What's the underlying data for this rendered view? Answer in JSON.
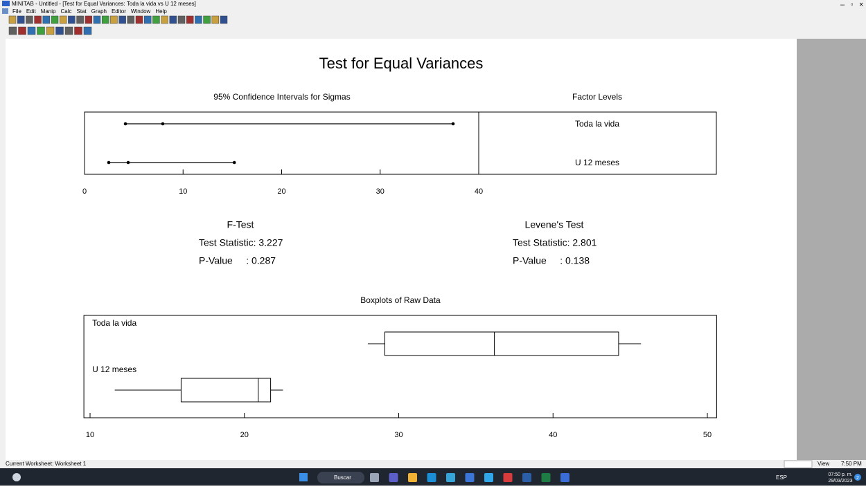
{
  "window": {
    "title": "MINITAB - Untitled - [Test for Equal Variances: Toda la vida vs U 12 meses]",
    "menu": [
      "File",
      "Edit",
      "Manip",
      "Calc",
      "Stat",
      "Graph",
      "Editor",
      "Window",
      "Help"
    ]
  },
  "graph": {
    "title": "Test for Equal Variances",
    "factor_header": "Factor Levels",
    "tests": [
      {
        "name": "F-Test",
        "statistic": "Test Statistic: 3.227",
        "p_value": "P-Value     : 0.287"
      },
      {
        "name": "Levene's Test",
        "statistic": "Test Statistic: 2.801",
        "p_value": "P-Value     : 0.138"
      }
    ]
  },
  "chart_data": [
    {
      "type": "interval",
      "title": "95% Confidence Intervals for Sigmas",
      "categories": [
        "Toda la vida",
        "U 12 meses"
      ],
      "lower": [
        4.15,
        2.46
      ],
      "center": [
        7.94,
        4.43
      ],
      "upper": [
        37.4,
        15.2
      ],
      "xlim": [
        0,
        40
      ],
      "xticks": [
        0,
        10,
        20,
        30,
        40
      ]
    },
    {
      "type": "box",
      "title": "Boxplots of Raw Data",
      "categories": [
        "Toda la vida",
        "U 12 meses"
      ],
      "min": [
        28.0,
        11.6
      ],
      "q1": [
        29.1,
        15.9
      ],
      "median": [
        36.2,
        20.9
      ],
      "q3": [
        44.25,
        21.7
      ],
      "max": [
        45.7,
        22.5
      ],
      "xlim": [
        9.6,
        50.6
      ],
      "xticks": [
        10,
        20,
        30,
        40,
        50
      ]
    }
  ],
  "status": {
    "worksheet": "Current Worksheet: Worksheet 1",
    "mode": "View",
    "time": "7:50 PM"
  },
  "taskbar": {
    "search": "Buscar",
    "language": "ESP",
    "time": "07:50 p. m.",
    "date": "29/03/2023",
    "notifications": 2
  }
}
